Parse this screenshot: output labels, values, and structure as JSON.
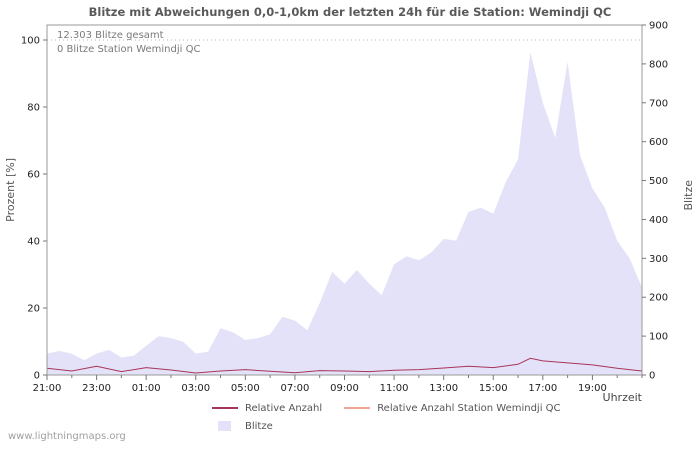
{
  "watermark": "www.lightningmaps.org",
  "chart_data": {
    "type": "area",
    "title": "Blitze mit Abweichungen 0,0-1,0km der letzten 24h für die Station: Wemindji QC",
    "xlabel": "Uhrzeit",
    "ylabel_left": "Prozent  [%]",
    "ylabel_right": "Blitze",
    "annotations": [
      "12.303 Blitze gesamt",
      "0 Blitze Station Wemindji QC"
    ],
    "legend_position": "bottom",
    "grid": {
      "dotted_line_at_left_value": 100
    },
    "x_axis": {
      "domain_hours": [
        0,
        24
      ],
      "tick_hours": [
        0,
        2,
        4,
        6,
        8,
        10,
        12,
        14,
        16,
        18,
        20,
        22
      ],
      "tick_labels": [
        "21:00",
        "23:00",
        "01:00",
        "03:00",
        "05:00",
        "07:00",
        "09:00",
        "11:00",
        "13:00",
        "15:00",
        "17:00",
        "19:00"
      ],
      "minor_tick_every_hour": true
    },
    "left_axis": {
      "min": 0,
      "max": 100,
      "ticks": [
        0,
        20,
        40,
        60,
        80,
        100
      ]
    },
    "right_axis": {
      "min": 0,
      "max": 900,
      "ticks": [
        0,
        100,
        200,
        300,
        400,
        500,
        600,
        700,
        800,
        900
      ]
    },
    "series": [
      {
        "name": "Blitze",
        "type": "area",
        "axis": "right",
        "color": "#e4e2f8",
        "x": [
          0,
          0.5,
          1,
          1.5,
          2,
          2.5,
          3,
          3.5,
          4,
          4.5,
          5,
          5.5,
          6,
          6.5,
          7,
          7.5,
          8,
          8.5,
          9,
          9.5,
          10,
          10.5,
          11,
          11.5,
          12,
          12.5,
          13,
          13.5,
          14,
          14.5,
          15,
          15.5,
          16,
          16.5,
          17,
          17.5,
          18,
          18.5,
          19,
          19.5,
          20,
          20.5,
          21,
          21.5,
          22,
          22.5,
          23,
          23.5,
          24
        ],
        "values": [
          55,
          62,
          55,
          38,
          55,
          65,
          45,
          50,
          75,
          100,
          95,
          85,
          55,
          60,
          120,
          110,
          90,
          95,
          105,
          150,
          140,
          115,
          185,
          265,
          235,
          270,
          235,
          205,
          285,
          305,
          295,
          315,
          350,
          345,
          420,
          430,
          415,
          495,
          555,
          830,
          700,
          610,
          805,
          565,
          480,
          430,
          345,
          300,
          225
        ]
      },
      {
        "name": "Relative Anzahl",
        "type": "line",
        "axis": "left",
        "color": "#a8345a",
        "x": [
          0,
          1,
          2,
          3,
          4,
          5,
          6,
          7,
          8,
          9,
          10,
          11,
          12,
          13,
          14,
          15,
          16,
          17,
          18,
          19,
          19.5,
          20,
          21,
          22,
          23,
          24
        ],
        "values": [
          2.0,
          1.2,
          2.6,
          1.0,
          2.2,
          1.5,
          0.6,
          1.2,
          1.6,
          1.1,
          0.7,
          1.3,
          1.2,
          1.0,
          1.4,
          1.6,
          2.1,
          2.6,
          2.2,
          3.2,
          5.0,
          4.2,
          3.6,
          3.0,
          2.0,
          1.2
        ]
      },
      {
        "name": "Relative Anzahl Station Wemindji QC",
        "type": "line",
        "axis": "left",
        "color": "#f2a693",
        "x": [
          0,
          24
        ],
        "values": [
          0,
          0
        ]
      }
    ]
  }
}
